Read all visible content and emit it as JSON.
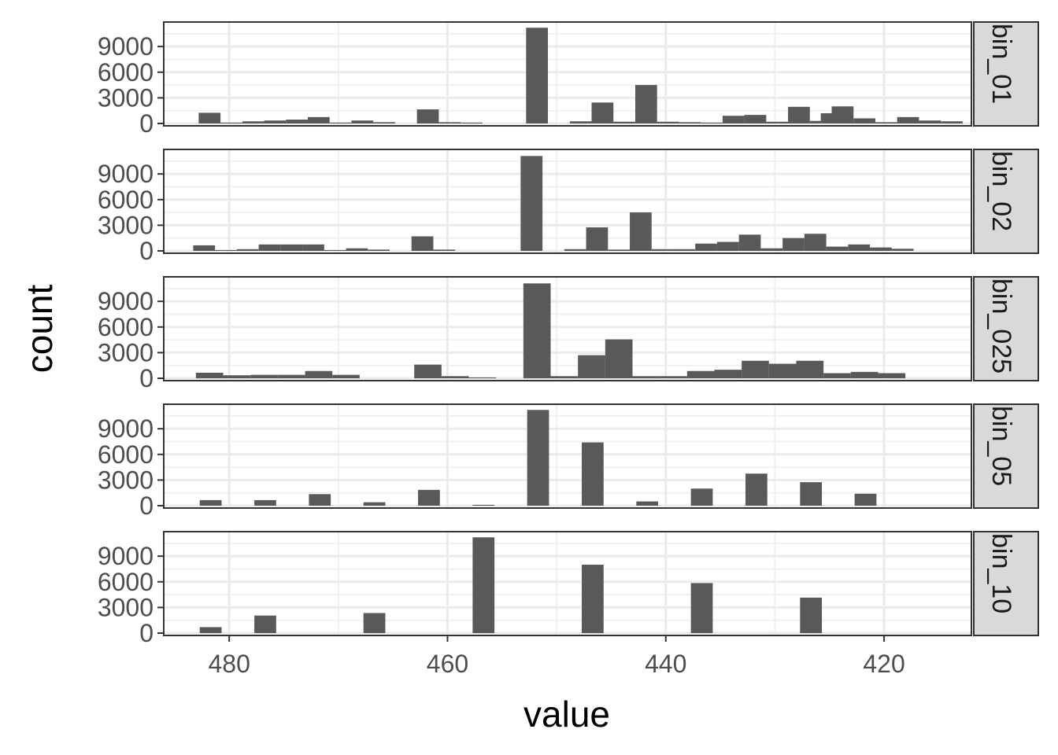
{
  "chart_data": {
    "type": "bar",
    "xlabel": "value",
    "ylabel": "count",
    "x_reversed": true,
    "xlim": [
      486,
      412
    ],
    "x_ticks": [
      480,
      460,
      440,
      420
    ],
    "y_ticks": [
      0,
      3000,
      6000,
      9000
    ],
    "ylim": [
      0,
      11500
    ],
    "grid": true,
    "bar_color": "#595959",
    "panels": [
      {
        "name": "bin_01",
        "bar_width": 2,
        "bars": [
          {
            "x": 481.8,
            "y": 1250
          },
          {
            "x": 479.8,
            "y": 100
          },
          {
            "x": 477.8,
            "y": 250
          },
          {
            "x": 475.8,
            "y": 350
          },
          {
            "x": 473.8,
            "y": 450
          },
          {
            "x": 471.8,
            "y": 750
          },
          {
            "x": 469.8,
            "y": 100
          },
          {
            "x": 467.8,
            "y": 350
          },
          {
            "x": 465.8,
            "y": 150
          },
          {
            "x": 461.8,
            "y": 1650
          },
          {
            "x": 459.8,
            "y": 150
          },
          {
            "x": 457.8,
            "y": 100
          },
          {
            "x": 451.8,
            "y": 11200
          },
          {
            "x": 447.8,
            "y": 250
          },
          {
            "x": 445.8,
            "y": 2450
          },
          {
            "x": 443.8,
            "y": 200
          },
          {
            "x": 441.8,
            "y": 4500
          },
          {
            "x": 439.8,
            "y": 200
          },
          {
            "x": 437.8,
            "y": 150
          },
          {
            "x": 435.8,
            "y": 100
          },
          {
            "x": 433.8,
            "y": 900
          },
          {
            "x": 431.8,
            "y": 1000
          },
          {
            "x": 429.8,
            "y": 200
          },
          {
            "x": 427.8,
            "y": 1950
          },
          {
            "x": 425.8,
            "y": 300
          },
          {
            "x": 424.8,
            "y": 1200
          },
          {
            "x": 423.8,
            "y": 2000
          },
          {
            "x": 421.8,
            "y": 600
          },
          {
            "x": 419.8,
            "y": 150
          },
          {
            "x": 417.8,
            "y": 750
          },
          {
            "x": 415.8,
            "y": 350
          },
          {
            "x": 413.8,
            "y": 250
          }
        ]
      },
      {
        "name": "bin_02",
        "bar_width": 2,
        "bars": [
          {
            "x": 482.3,
            "y": 650
          },
          {
            "x": 480.3,
            "y": 100
          },
          {
            "x": 478.3,
            "y": 200
          },
          {
            "x": 476.3,
            "y": 750
          },
          {
            "x": 474.3,
            "y": 750
          },
          {
            "x": 472.3,
            "y": 750
          },
          {
            "x": 470.3,
            "y": 100
          },
          {
            "x": 468.3,
            "y": 300
          },
          {
            "x": 466.3,
            "y": 150
          },
          {
            "x": 462.3,
            "y": 1700
          },
          {
            "x": 460.3,
            "y": 150
          },
          {
            "x": 452.3,
            "y": 11100
          },
          {
            "x": 448.3,
            "y": 200
          },
          {
            "x": 446.3,
            "y": 2750
          },
          {
            "x": 444.3,
            "y": 150
          },
          {
            "x": 442.3,
            "y": 4500
          },
          {
            "x": 440.3,
            "y": 200
          },
          {
            "x": 438.3,
            "y": 200
          },
          {
            "x": 436.3,
            "y": 850
          },
          {
            "x": 434.3,
            "y": 1050
          },
          {
            "x": 432.3,
            "y": 1900
          },
          {
            "x": 430.3,
            "y": 300
          },
          {
            "x": 428.3,
            "y": 1500
          },
          {
            "x": 426.3,
            "y": 2000
          },
          {
            "x": 424.3,
            "y": 500
          },
          {
            "x": 422.3,
            "y": 750
          },
          {
            "x": 420.3,
            "y": 400
          },
          {
            "x": 418.3,
            "y": 250
          }
        ]
      },
      {
        "name": "bin_025",
        "bar_width": 2.5,
        "bars": [
          {
            "x": 481.8,
            "y": 650
          },
          {
            "x": 479.3,
            "y": 350
          },
          {
            "x": 476.8,
            "y": 400
          },
          {
            "x": 474.3,
            "y": 400
          },
          {
            "x": 471.8,
            "y": 850
          },
          {
            "x": 469.3,
            "y": 400
          },
          {
            "x": 461.8,
            "y": 1600
          },
          {
            "x": 459.3,
            "y": 250
          },
          {
            "x": 456.8,
            "y": 100
          },
          {
            "x": 451.8,
            "y": 11100
          },
          {
            "x": 449.3,
            "y": 250
          },
          {
            "x": 446.8,
            "y": 2700
          },
          {
            "x": 444.3,
            "y": 4550
          },
          {
            "x": 441.8,
            "y": 250
          },
          {
            "x": 439.3,
            "y": 250
          },
          {
            "x": 436.8,
            "y": 850
          },
          {
            "x": 434.3,
            "y": 1000
          },
          {
            "x": 431.8,
            "y": 2050
          },
          {
            "x": 429.3,
            "y": 1700
          },
          {
            "x": 426.8,
            "y": 2050
          },
          {
            "x": 424.3,
            "y": 600
          },
          {
            "x": 421.8,
            "y": 750
          },
          {
            "x": 419.3,
            "y": 600
          }
        ]
      },
      {
        "name": "bin_05",
        "bar_width": 2,
        "bars": [
          {
            "x": 481.7,
            "y": 650
          },
          {
            "x": 476.7,
            "y": 650
          },
          {
            "x": 471.7,
            "y": 1350
          },
          {
            "x": 466.7,
            "y": 400
          },
          {
            "x": 461.7,
            "y": 1850
          },
          {
            "x": 456.7,
            "y": 100
          },
          {
            "x": 451.7,
            "y": 11200
          },
          {
            "x": 446.7,
            "y": 7400
          },
          {
            "x": 441.7,
            "y": 500
          },
          {
            "x": 436.7,
            "y": 2000
          },
          {
            "x": 431.7,
            "y": 3750
          },
          {
            "x": 426.7,
            "y": 2750
          },
          {
            "x": 421.7,
            "y": 1400
          }
        ]
      },
      {
        "name": "bin_10",
        "bar_width": 2,
        "bars": [
          {
            "x": 481.7,
            "y": 700
          },
          {
            "x": 476.7,
            "y": 2050
          },
          {
            "x": 466.7,
            "y": 2350
          },
          {
            "x": 456.7,
            "y": 11200
          },
          {
            "x": 446.7,
            "y": 8000
          },
          {
            "x": 436.7,
            "y": 5850
          },
          {
            "x": 426.7,
            "y": 4150
          }
        ]
      }
    ]
  }
}
